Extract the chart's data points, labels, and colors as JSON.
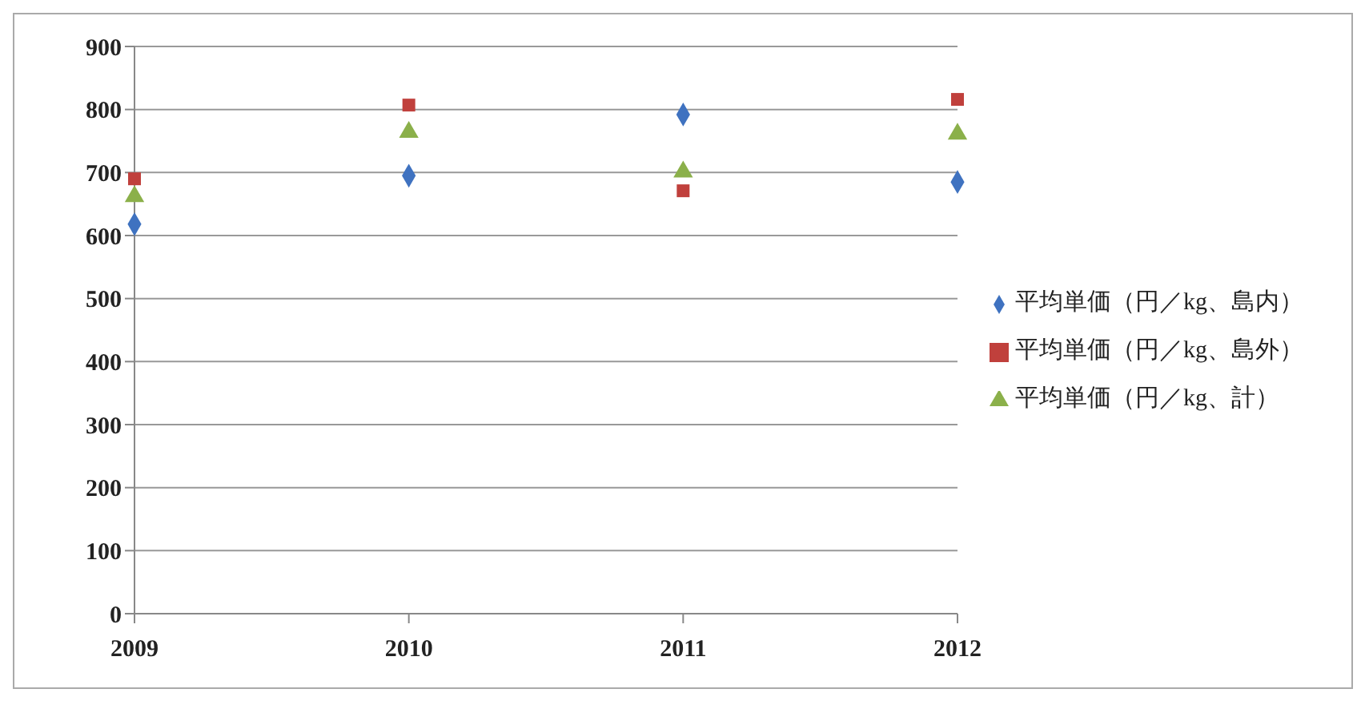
{
  "chart_data": {
    "type": "scatter",
    "x": [
      2009,
      2010,
      2011,
      2012
    ],
    "xlim": [
      2009,
      2012
    ],
    "xticks": [
      2009,
      2010,
      2011,
      2012
    ],
    "ylim": [
      0,
      900
    ],
    "yticks": [
      0,
      100,
      200,
      300,
      400,
      500,
      600,
      700,
      800,
      900
    ],
    "grid": "y",
    "legend": "right",
    "series": [
      {
        "name": "平均単価（円／kg、島内）",
        "color": "#3f72c0",
        "marker": "diamond",
        "values": [
          618,
          695,
          792,
          685
        ]
      },
      {
        "name": "平均単価（円／kg、島外）",
        "color": "#c0403c",
        "marker": "square",
        "values": [
          690,
          807,
          671,
          816
        ]
      },
      {
        "name": "平均単価（円／kg、計）",
        "color": "#8bb04a",
        "marker": "triangle",
        "values": [
          662,
          764,
          701,
          761
        ]
      }
    ]
  }
}
